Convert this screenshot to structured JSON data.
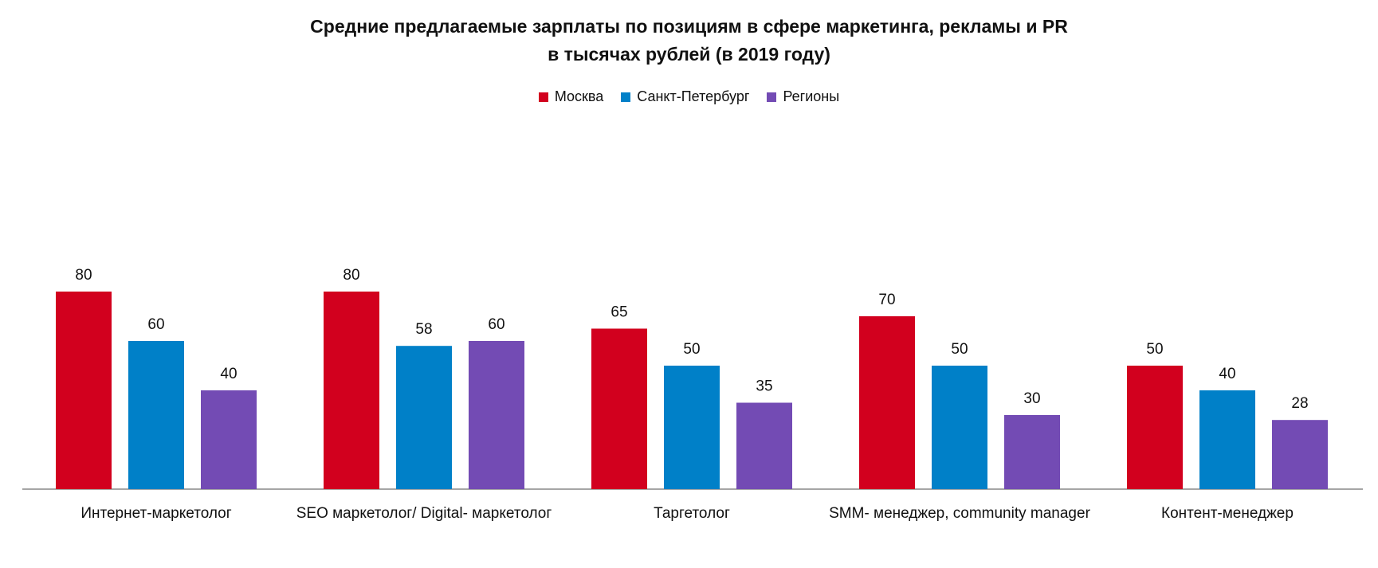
{
  "chart_data": {
    "type": "bar",
    "title": "Средние предлагаемые зарплаты по позициям  в сфере маркетинга, рекламы и PR",
    "subtitle": "в тысячах рублей (в 2019 году)",
    "categories": [
      "Интернет-маркетолог",
      "SEO маркетолог/ Digital- маркетолог",
      "Таргетолог",
      "SMM- менеджер, community manager",
      "Контент-менеджер"
    ],
    "series": [
      {
        "name": "Москва",
        "color": "#d2001e",
        "values": [
          80,
          80,
          65,
          70,
          50
        ]
      },
      {
        "name": "Санкт-Петербург",
        "color": "#0080c8",
        "values": [
          60,
          58,
          50,
          50,
          40
        ]
      },
      {
        "name": "Регионы",
        "color": "#734bb4",
        "values": [
          40,
          60,
          35,
          30,
          28
        ]
      }
    ],
    "ylim": [
      0,
      160
    ],
    "legend_position": "top-center",
    "grid": false
  }
}
